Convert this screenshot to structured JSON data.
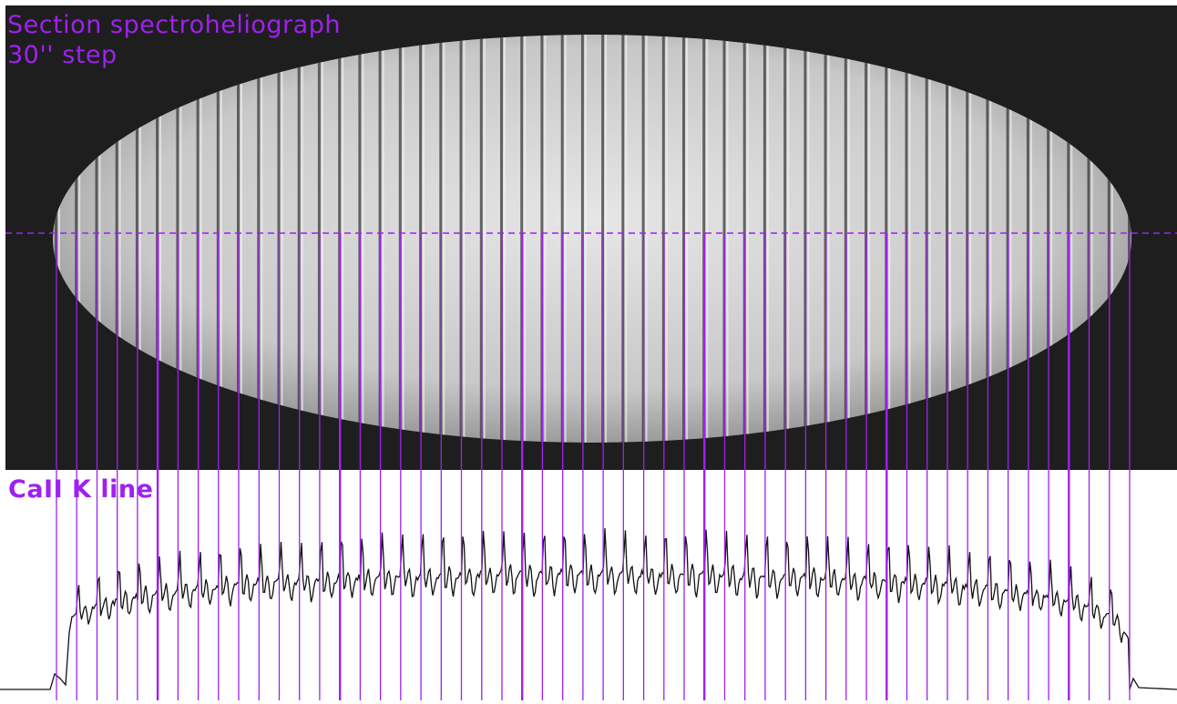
{
  "figure": {
    "title_line1": "Section spectroheliograph",
    "title_line2": "30'' step",
    "plot_label": "CaII K line"
  },
  "colors": {
    "marker_purple": "#a020f0",
    "image_background": "#1e1e1e",
    "disk_light": "#d8d8d8",
    "trace": "#111111",
    "plot_background": "#ffffff"
  },
  "chart_data": {
    "type": "line",
    "title": "CaII K line",
    "xlabel": "",
    "ylabel": "",
    "grid": false,
    "slit_positions": 54,
    "note_visible": "vertical purple markers at each 30'' step; horizontal dashed purple line across the spectroheliogram"
  }
}
